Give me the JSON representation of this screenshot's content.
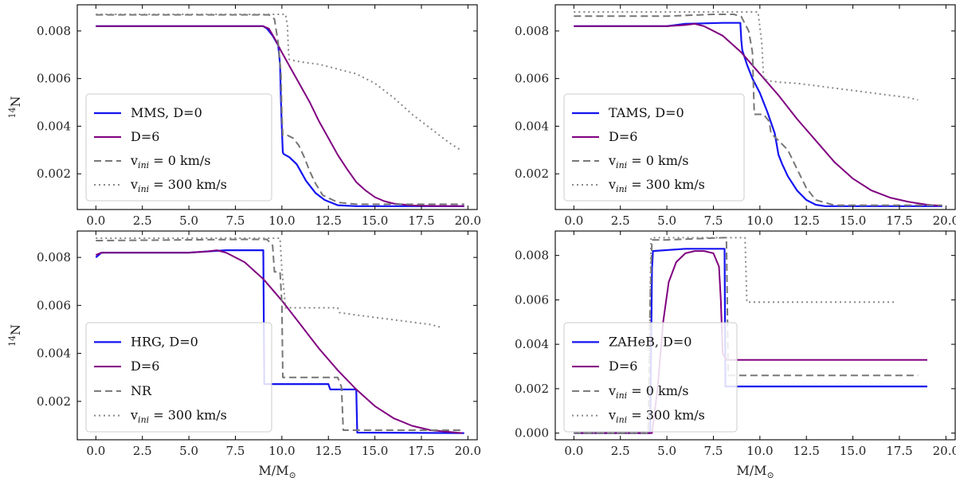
{
  "chart_data": [
    {
      "type": "line",
      "panel": "top-left",
      "xlabel": "",
      "ylabel": "14N",
      "xlim": [
        -1,
        20.5
      ],
      "ylim": [
        0.0005,
        0.0091
      ],
      "xticks": [
        0,
        2.5,
        5,
        7.5,
        10,
        12.5,
        15,
        17.5,
        20
      ],
      "xtick_labels": [
        "0.0",
        "2.5",
        "5.0",
        "7.5",
        "10.0",
        "12.5",
        "15.0",
        "17.5",
        "20.0"
      ],
      "yticks": [
        0.002,
        0.004,
        0.006,
        0.008
      ],
      "ytick_labels": [
        "0.002",
        "0.004",
        "0.006",
        "0.008"
      ],
      "legend_position": "lower-left",
      "series": [
        {
          "name": "MMS, D=0",
          "label_main": "MMS, D=0",
          "label_sub": "",
          "label_tail": "",
          "color": "#1414f0",
          "dash": "solid",
          "width": 2.2,
          "x": [
            0,
            9.0,
            9.2,
            9.5,
            9.8,
            9.9,
            9.95,
            10.0,
            10.05,
            10.1,
            10.4,
            10.8,
            11.3,
            11.8,
            12.3,
            13.0,
            14.0,
            16.0,
            19.8
          ],
          "y": [
            0.0082,
            0.0082,
            0.0081,
            0.0078,
            0.0074,
            0.0066,
            0.005,
            0.0039,
            0.0029,
            0.00283,
            0.0027,
            0.0024,
            0.0017,
            0.0012,
            0.0009,
            0.00068,
            0.00064,
            0.00064,
            0.00064
          ]
        },
        {
          "name": "D=6",
          "label_main": "D=6",
          "label_sub": "",
          "label_tail": "",
          "color": "#800080",
          "dash": "solid",
          "width": 2.0,
          "x": [
            0,
            9.0,
            9.3,
            9.6,
            10.0,
            10.5,
            11.0,
            11.5,
            12.0,
            12.5,
            13.0,
            13.5,
            14.0,
            14.5,
            15.0,
            15.5,
            16.0,
            17.0,
            18.0,
            19.8
          ],
          "y": [
            0.0082,
            0.0082,
            0.0081,
            0.0077,
            0.0071,
            0.0064,
            0.0057,
            0.005,
            0.0042,
            0.0035,
            0.0028,
            0.0022,
            0.00165,
            0.0013,
            0.00102,
            0.00085,
            0.00075,
            0.00067,
            0.00065,
            0.00064
          ]
        },
        {
          "name": "vini = 0 km/s",
          "label_main": "v",
          "label_sub": "ini",
          "label_tail": " = 0 km/s",
          "color": "#777777",
          "dash": "9,5",
          "width": 2.0,
          "x": [
            0,
            9.3,
            9.6,
            9.8,
            9.95,
            10.0,
            10.05,
            10.3,
            10.6,
            10.9,
            11.2,
            11.5,
            11.8,
            12.2,
            13.0,
            14.0,
            19.8
          ],
          "y": [
            0.00868,
            0.00868,
            0.0085,
            0.0075,
            0.0062,
            0.0045,
            0.00362,
            0.00362,
            0.0035,
            0.0032,
            0.0027,
            0.0021,
            0.0016,
            0.0011,
            0.0008,
            0.00072,
            0.00072
          ]
        },
        {
          "name": "vini = 300 km/s",
          "label_main": "v",
          "label_sub": "ini",
          "label_tail": " = 300 km/s",
          "color": "#888888",
          "dash": "2,4",
          "width": 2.0,
          "x": [
            0,
            10.2,
            10.3,
            10.35,
            10.4,
            11.0,
            12.0,
            13.0,
            14.0,
            15.0,
            16.0,
            17.0,
            18.0,
            19.0,
            19.6
          ],
          "y": [
            0.0087,
            0.0087,
            0.0082,
            0.0072,
            0.0068,
            0.0067,
            0.0066,
            0.0064,
            0.0062,
            0.0058,
            0.0052,
            0.0045,
            0.0039,
            0.0033,
            0.003
          ]
        }
      ]
    },
    {
      "type": "line",
      "panel": "top-right",
      "xlabel": "",
      "ylabel": "",
      "xlim": [
        -1,
        20.5
      ],
      "ylim": [
        0.0005,
        0.0091
      ],
      "xticks": [
        0,
        2.5,
        5,
        7.5,
        10,
        12.5,
        15,
        17.5,
        20
      ],
      "xtick_labels": [
        "0.0",
        "2.5",
        "5.0",
        "7.5",
        "10.0",
        "12.5",
        "15.0",
        "17.5",
        "20.0"
      ],
      "yticks": [
        0.002,
        0.004,
        0.006,
        0.008
      ],
      "ytick_labels": [
        "0.002",
        "0.004",
        "0.006",
        "0.008"
      ],
      "legend_position": "lower-left",
      "series": [
        {
          "name": "TAMS, D=0",
          "label_main": "TAMS, D=0",
          "label_sub": "",
          "label_tail": "",
          "color": "#1414f0",
          "dash": "solid",
          "width": 2.2,
          "x": [
            0,
            5.0,
            6.0,
            7.0,
            8.0,
            8.95,
            9.0,
            9.05,
            9.3,
            9.6,
            10.0,
            10.4,
            10.8,
            11.0,
            11.2,
            11.5,
            12.0,
            12.5,
            13.0,
            13.5,
            14.5,
            19.8
          ],
          "y": [
            0.0082,
            0.0082,
            0.0083,
            0.00832,
            0.00834,
            0.00834,
            0.0076,
            0.0072,
            0.0066,
            0.006,
            0.0054,
            0.0046,
            0.0037,
            0.0028,
            0.0024,
            0.0019,
            0.0013,
            0.0009,
            0.0007,
            0.00064,
            0.00064,
            0.00064
          ]
        },
        {
          "name": "D=6",
          "label_main": "D=6",
          "label_sub": "",
          "label_tail": "",
          "color": "#800080",
          "dash": "solid",
          "width": 2.0,
          "x": [
            0,
            5.0,
            6.0,
            6.5,
            7.0,
            8.0,
            9.0,
            10.0,
            11.0,
            12.0,
            13.0,
            14.0,
            15.0,
            16.0,
            17.0,
            18.0,
            19.0,
            19.7
          ],
          "y": [
            0.0082,
            0.0082,
            0.00825,
            0.0083,
            0.0082,
            0.0078,
            0.0071,
            0.0062,
            0.0053,
            0.0043,
            0.0034,
            0.0025,
            0.0018,
            0.0013,
            0.001,
            0.00082,
            0.0007,
            0.00066
          ]
        },
        {
          "name": "vini = 0 km/s",
          "label_main": "v",
          "label_sub": "ini",
          "label_tail": " = 0 km/s",
          "color": "#777777",
          "dash": "9,5",
          "width": 2.0,
          "x": [
            0,
            5.0,
            7.5,
            8.6,
            9.0,
            9.4,
            9.6,
            9.7,
            10.2,
            10.5,
            10.6,
            11.0,
            11.5,
            12.0,
            12.5,
            13.0,
            14.0,
            19.8
          ],
          "y": [
            0.00862,
            0.00862,
            0.0087,
            0.0087,
            0.0086,
            0.008,
            0.0071,
            0.0045,
            0.0045,
            0.0042,
            0.0037,
            0.0034,
            0.003,
            0.0022,
            0.0014,
            0.0009,
            0.00068,
            0.00068
          ]
        },
        {
          "name": "vini = 300 km/s",
          "label_main": "v",
          "label_sub": "ini",
          "label_tail": " = 300 km/s",
          "color": "#888888",
          "dash": "2,4",
          "width": 2.0,
          "x": [
            0,
            9.3,
            9.9,
            10.1,
            10.2,
            10.5,
            11.0,
            12.0,
            13.0,
            14.0,
            15.0,
            16.0,
            17.0,
            18.0,
            18.5
          ],
          "y": [
            0.0088,
            0.0088,
            0.0088,
            0.0075,
            0.006,
            0.0059,
            0.00585,
            0.0058,
            0.0057,
            0.0056,
            0.0055,
            0.0054,
            0.0053,
            0.0052,
            0.0051
          ]
        }
      ]
    },
    {
      "type": "line",
      "panel": "bottom-left",
      "xlabel": "M/M⊙",
      "ylabel": "14N",
      "xlim": [
        -1,
        20.5
      ],
      "ylim": [
        0.0004,
        0.0091
      ],
      "xticks": [
        0,
        2.5,
        5,
        7.5,
        10,
        12.5,
        15,
        17.5,
        20
      ],
      "xtick_labels": [
        "0.0",
        "2.5",
        "5.0",
        "7.5",
        "10.0",
        "12.5",
        "15.0",
        "17.5",
        "20.0"
      ],
      "yticks": [
        0.002,
        0.004,
        0.006,
        0.008
      ],
      "ytick_labels": [
        "0.002",
        "0.004",
        "0.006",
        "0.008"
      ],
      "legend_position": "lower-left",
      "series": [
        {
          "name": "HRG, D=0",
          "label_main": "HRG, D=0",
          "label_sub": "",
          "label_tail": "",
          "color": "#1414f0",
          "dash": "solid",
          "width": 2.2,
          "x": [
            0,
            0.3,
            5.0,
            7.0,
            8.9,
            9.0,
            9.05,
            12.5,
            12.6,
            14.0,
            14.05,
            19.8
          ],
          "y": [
            0.008,
            0.0082,
            0.0082,
            0.0083,
            0.0083,
            0.0083,
            0.00272,
            0.00272,
            0.0025,
            0.0025,
            0.0007,
            0.00068
          ]
        },
        {
          "name": "D=6",
          "label_main": "D=6",
          "label_sub": "",
          "label_tail": "",
          "color": "#800080",
          "dash": "solid",
          "width": 2.0,
          "x": [
            0,
            0.3,
            5.0,
            6.0,
            6.5,
            7.0,
            8.0,
            9.0,
            10.0,
            11.0,
            12.0,
            13.0,
            14.0,
            15.0,
            16.0,
            17.0,
            18.0,
            19.7
          ],
          "y": [
            0.0081,
            0.0082,
            0.0082,
            0.00825,
            0.0083,
            0.0082,
            0.0078,
            0.0071,
            0.0062,
            0.0052,
            0.0042,
            0.0033,
            0.0025,
            0.0018,
            0.0013,
            0.00098,
            0.0008,
            0.00068
          ]
        },
        {
          "name": "NR",
          "label_main": "NR",
          "label_sub": "",
          "label_tail": "",
          "color": "#777777",
          "dash": "9,5",
          "width": 2.0,
          "x": [
            0,
            8.0,
            9.2,
            9.5,
            9.6,
            9.9,
            10.0,
            10.05,
            13.0,
            13.2,
            13.3,
            19.8
          ],
          "y": [
            0.0087,
            0.00875,
            0.00875,
            0.0085,
            0.0074,
            0.0074,
            0.0061,
            0.003,
            0.003,
            0.0026,
            0.0008,
            0.0008
          ]
        },
        {
          "name": "vini = 300 km/s",
          "label_main": "v",
          "label_sub": "ini",
          "label_tail": " = 300 km/s",
          "color": "#888888",
          "dash": "2,4",
          "width": 2.0,
          "x": [
            0,
            9.5,
            9.9,
            10.0,
            10.2,
            11.0,
            13.0,
            13.1,
            14.0,
            15.0,
            16.0,
            17.0,
            18.0,
            18.5
          ],
          "y": [
            0.0088,
            0.0088,
            0.0088,
            0.0075,
            0.0059,
            0.0059,
            0.0059,
            0.0057,
            0.0056,
            0.0055,
            0.0054,
            0.0053,
            0.0052,
            0.0051
          ]
        }
      ]
    },
    {
      "type": "line",
      "panel": "bottom-right",
      "xlabel": "M/M⊙",
      "ylabel": "",
      "xlim": [
        -1,
        20.5
      ],
      "ylim": [
        -0.0003,
        0.0091
      ],
      "xticks": [
        0,
        2.5,
        5,
        7.5,
        10,
        12.5,
        15,
        17.5,
        20
      ],
      "xtick_labels": [
        "0.0",
        "2.5",
        "5.0",
        "7.5",
        "10.0",
        "12.5",
        "15.0",
        "17.5",
        "20.0"
      ],
      "yticks": [
        0,
        0.002,
        0.004,
        0.006,
        0.008
      ],
      "ytick_labels": [
        "0.000",
        "0.002",
        "0.004",
        "0.006",
        "0.008"
      ],
      "legend_position": "lower-left",
      "series": [
        {
          "name": "ZAHeB, D=0",
          "label_main": "ZAHeB, D=0",
          "label_sub": "",
          "label_tail": "",
          "color": "#1414f0",
          "dash": "solid",
          "width": 2.2,
          "x": [
            0,
            4.1,
            4.2,
            4.25,
            6.0,
            8.0,
            8.1,
            8.15,
            19.0
          ],
          "y": [
            0.0,
            0.0,
            0.0074,
            0.0082,
            0.0083,
            0.0083,
            0.0083,
            0.0021,
            0.0021
          ]
        },
        {
          "name": "D=6",
          "label_main": "D=6",
          "label_sub": "",
          "label_tail": "",
          "color": "#800080",
          "dash": "solid",
          "width": 2.0,
          "x": [
            0,
            4.2,
            4.5,
            4.8,
            5.1,
            5.5,
            6.0,
            6.5,
            7.0,
            7.5,
            7.8,
            7.9,
            8.0,
            8.2,
            19.0
          ],
          "y": [
            0.0,
            0.0,
            0.002,
            0.005,
            0.0068,
            0.0077,
            0.0081,
            0.0082,
            0.0082,
            0.0081,
            0.0075,
            0.006,
            0.0036,
            0.0033,
            0.0033
          ]
        },
        {
          "name": "vini = 0 km/s",
          "label_main": "v",
          "label_sub": "ini",
          "label_tail": " = 0 km/s",
          "color": "#777777",
          "dash": "9,5",
          "width": 2.0,
          "x": [
            0,
            4.0,
            4.1,
            4.2,
            5.0,
            8.0,
            8.2,
            8.3,
            18.5
          ],
          "y": [
            0.0,
            0.0,
            0.006,
            0.0087,
            0.0087,
            0.0088,
            0.0088,
            0.0026,
            0.0026
          ]
        },
        {
          "name": "vini = 300 km/s",
          "label_main": "v",
          "label_sub": "ini",
          "label_tail": " = 300 km/s",
          "color": "#888888",
          "dash": "2,4",
          "width": 2.0,
          "x": [
            0,
            4.0,
            4.15,
            5.0,
            9.2,
            9.3,
            17.3
          ],
          "y": [
            0.0,
            0.0,
            0.0088,
            0.0088,
            0.0088,
            0.0059,
            0.0059
          ]
        }
      ]
    }
  ]
}
